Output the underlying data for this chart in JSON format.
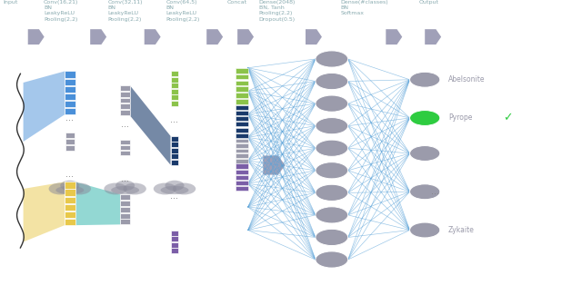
{
  "bar_colors": {
    "blue": "#4a90d9",
    "dark_blue": "#1a3a6b",
    "teal": "#3ab8b0",
    "yellow": "#e8c84a",
    "green": "#8bc34a",
    "purple": "#7b5ea7",
    "gray": "#9b9bab"
  },
  "node_color": "#8a8aaa",
  "highlight_node_color": "#2ecc40",
  "text_color": "#8a8aaa",
  "label_color": "#8aaa88",
  "checkmark_color": "#2ecc40",
  "line_color": "#5ba3d9",
  "arrow_color": "#a0a0b8",
  "cloud_color": "#8a8a9a",
  "output_labels": [
    "Abelsonite",
    "Pyrope",
    "...",
    "Zykaite"
  ],
  "highlight_index": 1,
  "top_labels": [
    [
      0.005,
      "Input"
    ],
    [
      0.075,
      "Conv(16,21)\nBN\nLeakyReLU\nPooling(2,2)"
    ],
    [
      0.185,
      "Conv(32,11)\nBN\nLeakyReLU\nPooling(2,2)"
    ],
    [
      0.285,
      "Conv(64,5)\nBN\nLeakyReLU\nPooling(2,2)"
    ],
    [
      0.39,
      "Concat"
    ],
    [
      0.445,
      "Dense(2048)\nBN, Tanh\nPooling(2,2)\nDropout(0.5)"
    ],
    [
      0.585,
      "Dense(#classes)\nBN\nSoftmax"
    ],
    [
      0.72,
      "Output"
    ]
  ]
}
